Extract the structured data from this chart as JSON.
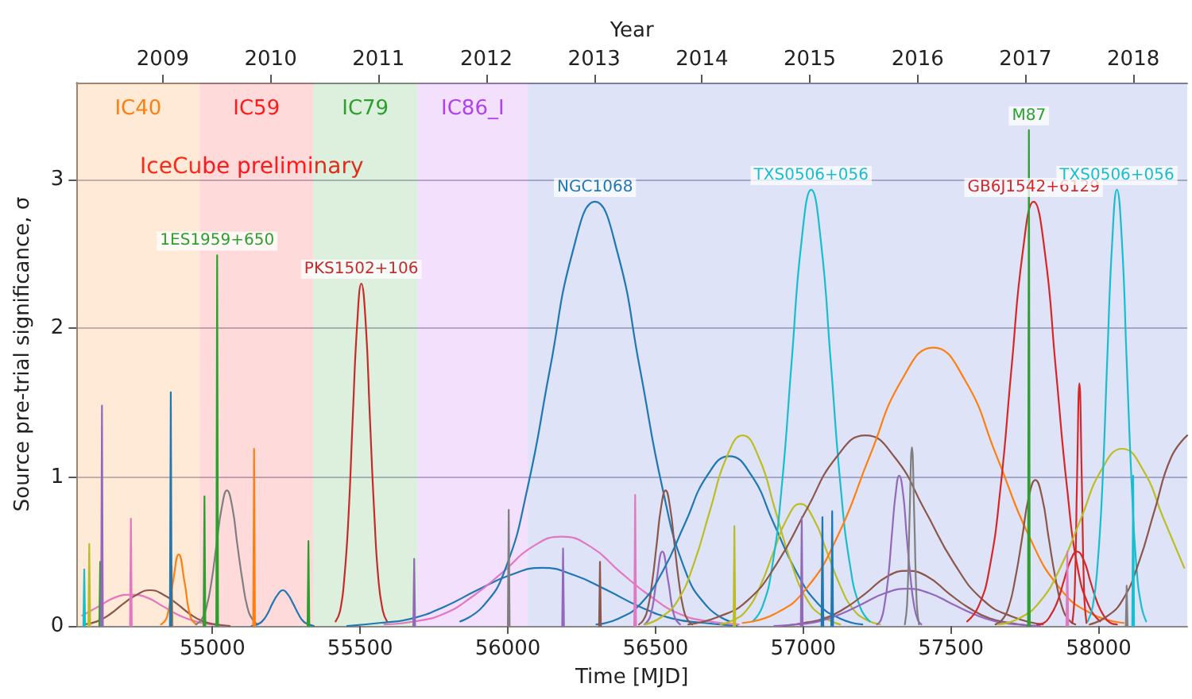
{
  "chart_data": {
    "type": "line",
    "xlabel": "Time [MJD]",
    "ylabel": "Source pre-trial significance, σ",
    "x2label": "Year",
    "annotations": [
      "IceCube preliminary"
    ],
    "xlim": [
      54540,
      58300
    ],
    "ylim": [
      0,
      3.65
    ],
    "xticks": [
      55000,
      55500,
      56000,
      56500,
      57000,
      57500,
      58000
    ],
    "yticks": [
      0,
      1,
      2,
      3
    ],
    "x2lim": [
      2008.2,
      2018.5
    ],
    "x2ticks": [
      2009,
      2010,
      2011,
      2012,
      2013,
      2014,
      2015,
      2016,
      2017,
      2018
    ],
    "grid": "y",
    "legend": false,
    "marker": "none",
    "line_style": "solid",
    "bands": [
      {
        "axis": "x",
        "from": 54540,
        "to": 54957,
        "label": "IC40",
        "color": "#ff7f0e"
      },
      {
        "axis": "x",
        "from": 54957,
        "to": 55341,
        "label": "IC59",
        "color": "#ff1a1a"
      },
      {
        "axis": "x",
        "from": 55341,
        "to": 55694,
        "label": "IC79",
        "color": "#2ca02c"
      },
      {
        "axis": "x",
        "from": 55694,
        "to": 56068,
        "label": "IC86_I",
        "color": "#b040f0"
      },
      {
        "axis": "x",
        "from": 56068,
        "to": 58300,
        "color": "#3050d0"
      }
    ],
    "series": [
      {
        "color": "#e377c2",
        "x": [
          54559,
          54614,
          54669,
          54724,
          54779,
          54834,
          54889,
          54944,
          54999,
          55054
        ],
        "values": [
          0.07,
          0.13,
          0.19,
          0.21,
          0.19,
          0.13,
          0.07,
          0.03,
          0.01,
          0.0
        ]
      },
      {
        "color": "#8c564b",
        "x": [
          54564,
          54609,
          54654,
          54699,
          54744,
          54789,
          54834,
          54879,
          54924,
          54969,
          55014,
          55059
        ],
        "values": [
          0.01,
          0.03,
          0.08,
          0.15,
          0.21,
          0.24,
          0.21,
          0.15,
          0.08,
          0.03,
          0.01,
          0.0
        ]
      },
      {
        "color": "#ff7f0e",
        "x": [
          54826,
          54846,
          54866,
          54886,
          54906,
          54926,
          54946
        ],
        "values": [
          0.01,
          0.06,
          0.29,
          0.48,
          0.29,
          0.06,
          0.01
        ]
      },
      {
        "color": "#7f7f7f",
        "x": [
          54944,
          54962,
          54979,
          54997,
          55014,
          55032,
          55049,
          55067,
          55084,
          55102,
          55119,
          55137,
          55154
        ],
        "values": [
          0.01,
          0.04,
          0.12,
          0.3,
          0.55,
          0.8,
          0.91,
          0.8,
          0.55,
          0.3,
          0.12,
          0.04,
          0.01
        ]
      },
      {
        "color": "#1f77b4",
        "x": [
          55133,
          55151,
          55168,
          55186,
          55203,
          55221,
          55238,
          55256,
          55273,
          55291,
          55308,
          55326,
          55343
        ],
        "values": [
          0.0,
          0.01,
          0.03,
          0.08,
          0.15,
          0.21,
          0.24,
          0.21,
          0.15,
          0.08,
          0.03,
          0.01,
          0.0
        ]
      },
      {
        "name": "PKS1502+106",
        "color": "#c62a2a",
        "x": [
          55417,
          55432,
          55446,
          55461,
          55475,
          55490,
          55504,
          55519,
          55533,
          55548,
          55562,
          55577,
          55591
        ],
        "values": [
          0.03,
          0.1,
          0.31,
          0.75,
          1.4,
          2.03,
          2.3,
          2.03,
          1.4,
          0.75,
          0.31,
          0.1,
          0.03
        ]
      },
      {
        "color": "#1f77b4",
        "x": [
          55456,
          55566,
          55676,
          55786,
          55896,
          56006,
          56116,
          56226,
          56336,
          56446,
          56556,
          56666,
          56776
        ],
        "values": [
          0.0,
          0.02,
          0.05,
          0.13,
          0.24,
          0.34,
          0.39,
          0.34,
          0.24,
          0.13,
          0.05,
          0.02,
          0.0
        ]
      },
      {
        "color": "#e377c2",
        "x": [
          55582,
          55682,
          55782,
          55882,
          55982,
          56082,
          56182,
          56282,
          56382,
          56482,
          56582,
          56682,
          56782
        ],
        "values": [
          0.01,
          0.03,
          0.08,
          0.2,
          0.36,
          0.53,
          0.6,
          0.53,
          0.36,
          0.2,
          0.08,
          0.03,
          0.01
        ]
      },
      {
        "name": "NGC1068",
        "color": "#1f77b4",
        "x": [
          55839,
          55915,
          55991,
          56067,
          56143,
          56219,
          56295,
          56371,
          56447,
          56523,
          56599,
          56675,
          56751
        ],
        "values": [
          0.03,
          0.13,
          0.38,
          0.93,
          1.73,
          2.51,
          2.85,
          2.51,
          1.73,
          0.93,
          0.38,
          0.13,
          0.03
        ]
      },
      {
        "color": "#9467bd",
        "x": [
          56463,
          56483,
          56503,
          56523,
          56543,
          56563,
          56583
        ],
        "values": [
          0.01,
          0.07,
          0.3,
          0.5,
          0.3,
          0.07,
          0.01
        ]
      },
      {
        "color": "#8c564b",
        "x": [
          56444,
          56459,
          56474,
          56489,
          56504,
          56519,
          56534,
          56549,
          56564,
          56579,
          56594,
          56609,
          56624
        ],
        "values": [
          0.01,
          0.04,
          0.12,
          0.3,
          0.55,
          0.8,
          0.91,
          0.8,
          0.55,
          0.3,
          0.12,
          0.04,
          0.01
        ]
      },
      {
        "color": "#1f77b4",
        "x": [
          56300,
          56375,
          56450,
          56525,
          56600,
          56675,
          56750,
          56825,
          56900,
          56975,
          57050,
          57125,
          57200
        ],
        "values": [
          0.01,
          0.05,
          0.15,
          0.37,
          0.69,
          1.01,
          1.14,
          1.01,
          0.69,
          0.37,
          0.15,
          0.05,
          0.01
        ]
      },
      {
        "color": "#bcbd22",
        "x": [
          56465,
          56520,
          56575,
          56630,
          56685,
          56740,
          56795,
          56850,
          56905,
          56960,
          57015,
          57070,
          57125
        ],
        "values": [
          0.01,
          0.06,
          0.17,
          0.42,
          0.78,
          1.13,
          1.28,
          1.13,
          0.78,
          0.42,
          0.17,
          0.06,
          0.01
        ]
      },
      {
        "color": "#bcbd22",
        "x": [
          56720,
          56765,
          56810,
          56855,
          56900,
          56945,
          56990,
          57035,
          57080,
          57125,
          57170,
          57215,
          57260
        ],
        "values": [
          0.01,
          0.04,
          0.11,
          0.27,
          0.5,
          0.72,
          0.82,
          0.72,
          0.5,
          0.27,
          0.11,
          0.04,
          0.01
        ]
      },
      {
        "name": "TXS0506+056",
        "color": "#17becf",
        "x": [
          56829,
          56862,
          56895,
          56928,
          56961,
          56994,
          57027,
          57060,
          57093,
          57126,
          57159,
          57192,
          57225
        ],
        "values": [
          0.03,
          0.13,
          0.4,
          0.95,
          1.78,
          2.58,
          2.93,
          2.58,
          1.78,
          0.95,
          0.4,
          0.13,
          0.03
        ]
      },
      {
        "color": "#8c564b",
        "x": [
          56611,
          56711,
          56811,
          56911,
          57011,
          57111,
          57211,
          57311,
          57411,
          57511,
          57611,
          57711,
          57811
        ],
        "values": [
          0.01,
          0.06,
          0.17,
          0.42,
          0.78,
          1.13,
          1.28,
          1.13,
          0.78,
          0.42,
          0.17,
          0.06,
          0.01
        ]
      },
      {
        "color": "#8c564b",
        "x": [
          56932,
          57002,
          57072,
          57142,
          57212,
          57282,
          57352,
          57422,
          57492,
          57562,
          57632,
          57702,
          57772
        ],
        "values": [
          0.0,
          0.02,
          0.05,
          0.12,
          0.22,
          0.33,
          0.37,
          0.33,
          0.22,
          0.12,
          0.05,
          0.02,
          0.0
        ]
      },
      {
        "color": "#9467bd",
        "x": [
          56902,
          56977,
          57052,
          57127,
          57202,
          57277,
          57352,
          57427,
          57502,
          57577,
          57652,
          57727,
          57802
        ],
        "values": [
          0.0,
          0.01,
          0.03,
          0.08,
          0.15,
          0.22,
          0.25,
          0.22,
          0.15,
          0.08,
          0.03,
          0.01,
          0.0
        ]
      },
      {
        "color": "#9467bd",
        "x": [
          57250,
          57263,
          57275,
          57288,
          57300,
          57313,
          57325,
          57338,
          57350,
          57363,
          57375,
          57388,
          57400
        ],
        "values": [
          0.01,
          0.04,
          0.14,
          0.33,
          0.61,
          0.89,
          1.01,
          0.89,
          0.61,
          0.33,
          0.14,
          0.04,
          0.01
        ]
      },
      {
        "color": "#7f7f7f",
        "x": [
          57344,
          57352,
          57360,
          57368,
          57376,
          57384,
          57392
        ],
        "values": [
          0.01,
          0.16,
          0.73,
          1.2,
          0.73,
          0.16,
          0.01
        ]
      },
      {
        "color": "#ff7f0e",
        "x": [
          56795,
          56903,
          57010,
          57118,
          57225,
          57333,
          57440,
          57548,
          57655,
          57763,
          57870,
          57978,
          58085
        ],
        "values": [
          0.02,
          0.08,
          0.25,
          0.61,
          1.14,
          1.65,
          1.87,
          1.65,
          1.14,
          0.61,
          0.25,
          0.08,
          0.02
        ]
      },
      {
        "name": "GB6J1542+6129",
        "color": "#d62728",
        "x": [
          57555,
          57593,
          57630,
          57668,
          57705,
          57743,
          57780,
          57818,
          57855,
          57893,
          57930,
          57968,
          58005
        ],
        "values": [
          0.03,
          0.13,
          0.38,
          0.93,
          1.73,
          2.51,
          2.85,
          2.51,
          1.73,
          0.93,
          0.38,
          0.13,
          0.03
        ]
      },
      {
        "color": "#8c564b",
        "x": [
          57651,
          57673,
          57696,
          57718,
          57741,
          57763,
          57786,
          57809,
          57831,
          57854,
          57876,
          57899,
          57921
        ],
        "values": [
          0.01,
          0.04,
          0.13,
          0.32,
          0.59,
          0.86,
          0.98,
          0.86,
          0.59,
          0.32,
          0.13,
          0.04,
          0.01
        ]
      },
      {
        "color": "#d62728",
        "x": [
          57792,
          57815,
          57837,
          57860,
          57882,
          57905,
          57927,
          57950,
          57972,
          57995,
          58017,
          58040,
          58062
        ],
        "values": [
          0.01,
          0.02,
          0.07,
          0.16,
          0.3,
          0.44,
          0.5,
          0.44,
          0.3,
          0.16,
          0.07,
          0.02,
          0.01
        ]
      },
      {
        "color": "#d62728",
        "x": [
          57911,
          57919,
          57927,
          57935,
          57943,
          57951,
          57959
        ],
        "values": [
          0.02,
          0.22,
          0.99,
          1.63,
          0.99,
          0.22,
          0.02
        ]
      },
      {
        "color": "#bcbd22",
        "x": [
          57660,
          57730,
          57800,
          57870,
          57940,
          58010,
          58080,
          58150,
          58220,
          58290
        ],
        "values": [
          0.01,
          0.05,
          0.16,
          0.39,
          0.72,
          1.05,
          1.19,
          1.05,
          0.72,
          0.39
        ]
      },
      {
        "name": "TXS0506+056",
        "color": "#17becf",
        "x": [
          57963,
          57980,
          57996,
          58013,
          58029,
          58046,
          58062,
          58079,
          58095,
          58112,
          58128,
          58145,
          58161
        ],
        "values": [
          0.03,
          0.13,
          0.4,
          0.95,
          1.78,
          2.58,
          2.93,
          2.58,
          1.78,
          0.95,
          0.4,
          0.13,
          0.03
        ]
      },
      {
        "color": "#8c564b",
        "x": [
          57970,
          58025,
          58080,
          58135,
          58190,
          58245,
          58300
        ],
        "values": [
          0.01,
          0.06,
          0.17,
          0.42,
          0.78,
          1.13,
          1.28
        ]
      },
      {
        "color": "#17becf",
        "x": [
          54563,
          54566,
          54569
        ],
        "values": [
          0,
          0.38,
          0
        ]
      },
      {
        "color": "#bcbd22",
        "x": [
          54580,
          54583,
          54586
        ],
        "values": [
          0,
          0.55,
          0
        ]
      },
      {
        "color": "#2ca02c",
        "x": [
          54617,
          54620,
          54623
        ],
        "values": [
          0,
          0.43,
          0
        ]
      },
      {
        "color": "#9467bd",
        "x": [
          54623,
          54626,
          54629
        ],
        "values": [
          0,
          1.48,
          0
        ]
      },
      {
        "color": "#e377c2",
        "x": [
          54721,
          54724,
          54727
        ],
        "values": [
          0,
          0.72,
          0
        ]
      },
      {
        "color": "#ff7f0e",
        "x": [
          54859,
          54862,
          54865
        ],
        "values": [
          0,
          0.4,
          0
        ]
      },
      {
        "color": "#1f77b4",
        "x": [
          54856,
          54859,
          54862
        ],
        "values": [
          0,
          1.57,
          0
        ]
      },
      {
        "color": "#2ca02c",
        "x": [
          54970,
          54973,
          54976
        ],
        "values": [
          0,
          0.87,
          0
        ]
      },
      {
        "name": "1ES1959+650",
        "color": "#2ca02c",
        "x": [
          55013,
          55016,
          55019
        ],
        "values": [
          0,
          2.49,
          0
        ]
      },
      {
        "color": "#ff7f0e",
        "x": [
          55138,
          55141,
          55144
        ],
        "values": [
          0,
          1.19,
          0
        ]
      },
      {
        "color": "#2ca02c",
        "x": [
          55322,
          55325,
          55328
        ],
        "values": [
          0,
          0.57,
          0
        ]
      },
      {
        "color": "#9467bd",
        "x": [
          55680,
          55683,
          55686
        ],
        "values": [
          0,
          0.45,
          0
        ]
      },
      {
        "color": "#7f7f7f",
        "x": [
          56000,
          56003,
          56006
        ],
        "values": [
          0,
          0.78,
          0
        ]
      },
      {
        "color": "#9467bd",
        "x": [
          56184,
          56187,
          56190
        ],
        "values": [
          0,
          0.52,
          0
        ]
      },
      {
        "color": "#8c564b",
        "x": [
          56309,
          56312,
          56315
        ],
        "values": [
          0,
          0.43,
          0
        ]
      },
      {
        "color": "#e377c2",
        "x": [
          56428,
          56431,
          56434
        ],
        "values": [
          0,
          0.88,
          0
        ]
      },
      {
        "color": "#bcbd22",
        "x": [
          56764,
          56767,
          56770
        ],
        "values": [
          0,
          0.67,
          0
        ]
      },
      {
        "color": "#9467bd",
        "x": [
          56992,
          56995,
          56998
        ],
        "values": [
          0,
          0.73,
          0
        ]
      },
      {
        "color": "#1f77b4",
        "x": [
          57062,
          57065,
          57068
        ],
        "values": [
          0,
          0.73,
          0
        ]
      },
      {
        "color": "#1f77b4",
        "x": [
          57095,
          57098,
          57101
        ],
        "values": [
          0,
          0.77,
          0
        ]
      },
      {
        "name": "M87",
        "color": "#2ca02c",
        "x": [
          57761,
          57764,
          57767
        ],
        "values": [
          0,
          3.33,
          0
        ]
      },
      {
        "color": "#e377c2",
        "x": [
          57891,
          57894,
          57897
        ],
        "values": [
          0,
          0.5,
          0
        ]
      },
      {
        "color": "#7f7f7f",
        "x": [
          58092,
          58095,
          58098
        ],
        "values": [
          0,
          0.27,
          0
        ]
      },
      {
        "color": "#17becf",
        "x": [
          58114,
          58117,
          58120
        ],
        "values": [
          0,
          1.01,
          0
        ]
      }
    ]
  }
}
